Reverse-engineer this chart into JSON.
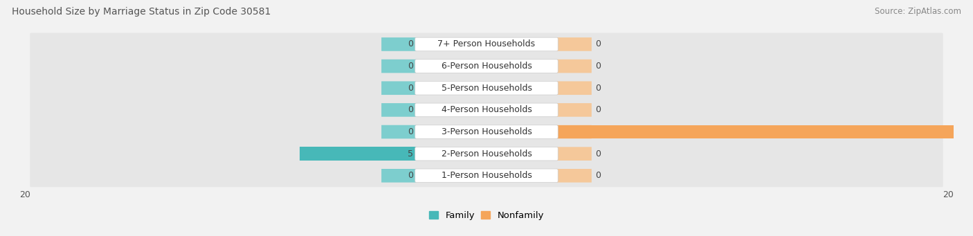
{
  "title": "Household Size by Marriage Status in Zip Code 30581",
  "source": "Source: ZipAtlas.com",
  "categories": [
    "7+ Person Households",
    "6-Person Households",
    "5-Person Households",
    "4-Person Households",
    "3-Person Households",
    "2-Person Households",
    "1-Person Households"
  ],
  "family_values": [
    0,
    0,
    0,
    0,
    0,
    5,
    0
  ],
  "nonfamily_values": [
    0,
    0,
    0,
    0,
    18,
    0,
    0
  ],
  "family_color": "#47b8b8",
  "nonfamily_color": "#f5a55a",
  "family_stub_color": "#7dcece",
  "nonfamily_stub_color": "#f5c89a",
  "xlim": [
    -20,
    20
  ],
  "bg_color": "#f2f2f2",
  "row_bg_color": "#ffffff",
  "row_alt_color": "#e8e8e8",
  "label_box_color": "#ffffff",
  "label_fontsize": 9,
  "title_fontsize": 10,
  "source_fontsize": 8.5,
  "bar_height": 0.62,
  "stub_size": 1.5,
  "legend_family": "Family",
  "legend_nonfamily": "Nonfamily"
}
